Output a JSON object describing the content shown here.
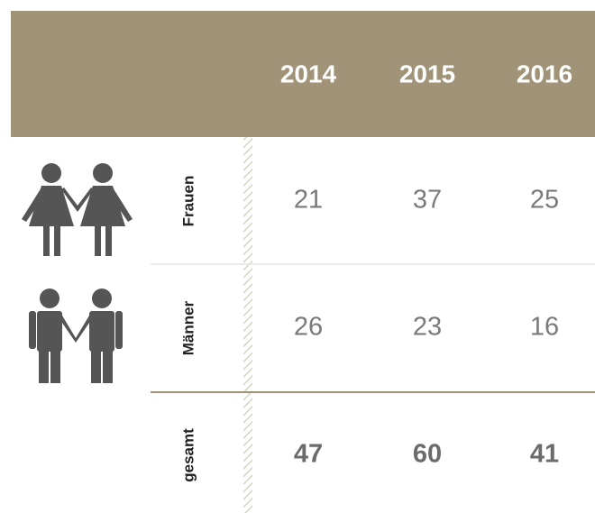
{
  "table": {
    "columns": [
      "2014",
      "2015",
      "2016"
    ],
    "rows": [
      {
        "label": "Frauen",
        "values": [
          21,
          37,
          25
        ]
      },
      {
        "label": "Männer",
        "values": [
          26,
          23,
          16
        ]
      },
      {
        "label": "gesamt",
        "values": [
          47,
          60,
          41
        ]
      }
    ]
  }
}
